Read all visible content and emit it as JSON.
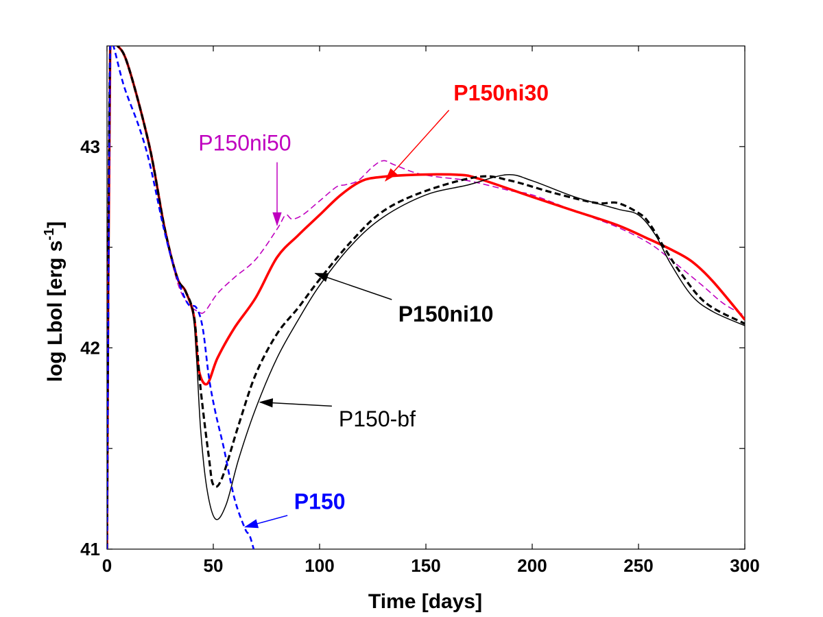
{
  "chart_data": {
    "type": "line",
    "title": "",
    "xlabel": "Time [days]",
    "ylabel": "log Lbol [erg s",
    "ylabel_sup": "-1",
    "ylabel_suffix": "]",
    "xlim": [
      0,
      300
    ],
    "ylim": [
      41,
      43.5
    ],
    "xticks": [
      0,
      50,
      100,
      150,
      200,
      250,
      300
    ],
    "xtick_labels": [
      "0",
      "50",
      "100",
      "150",
      "200",
      "250",
      "300"
    ],
    "yticks": [
      41,
      41.5,
      42,
      42.5,
      43
    ],
    "ytick_labels": [
      "41",
      "",
      "42",
      "",
      "43"
    ],
    "grid": false,
    "series": [
      {
        "name": "P150ni50",
        "color": "#bf00bf",
        "style": "dashed-thin",
        "points": [
          [
            0,
            41
          ],
          [
            1.5,
            43.5
          ],
          [
            5,
            43.5
          ],
          [
            10,
            43.4
          ],
          [
            20,
            43.0
          ],
          [
            27,
            42.6
          ],
          [
            33,
            42.33
          ],
          [
            38,
            42.22
          ],
          [
            43,
            42.18
          ],
          [
            46,
            42.18
          ],
          [
            52,
            42.27
          ],
          [
            60,
            42.35
          ],
          [
            70,
            42.44
          ],
          [
            80,
            42.59
          ],
          [
            84,
            42.66
          ],
          [
            87,
            42.64
          ],
          [
            92,
            42.66
          ],
          [
            100,
            42.73
          ],
          [
            108,
            42.8
          ],
          [
            112,
            42.81
          ],
          [
            118,
            42.83
          ],
          [
            125,
            42.9
          ],
          [
            130,
            42.93
          ],
          [
            135,
            42.91
          ],
          [
            145,
            42.87
          ],
          [
            155,
            42.85
          ],
          [
            170,
            42.83
          ],
          [
            190,
            42.78
          ],
          [
            200,
            42.76
          ],
          [
            220,
            42.68
          ],
          [
            240,
            42.6
          ],
          [
            255,
            42.52
          ],
          [
            265,
            42.44
          ],
          [
            280,
            42.31
          ],
          [
            290,
            42.22
          ],
          [
            300,
            42.16
          ]
        ]
      },
      {
        "name": "P150ni30",
        "color": "#ff0000",
        "style": "solid-thick",
        "points": [
          [
            0,
            41
          ],
          [
            1.5,
            43.5
          ],
          [
            5,
            43.5
          ],
          [
            10,
            43.4
          ],
          [
            20,
            43.0
          ],
          [
            27,
            42.6
          ],
          [
            33,
            42.35
          ],
          [
            37,
            42.28
          ],
          [
            41,
            42.15
          ],
          [
            43,
            41.9
          ],
          [
            47,
            41.82
          ],
          [
            52,
            41.95
          ],
          [
            60,
            42.1
          ],
          [
            70,
            42.25
          ],
          [
            80,
            42.45
          ],
          [
            90,
            42.56
          ],
          [
            100,
            42.66
          ],
          [
            110,
            42.76
          ],
          [
            120,
            42.83
          ],
          [
            130,
            42.85
          ],
          [
            145,
            42.86
          ],
          [
            165,
            42.86
          ],
          [
            175,
            42.84
          ],
          [
            200,
            42.75
          ],
          [
            220,
            42.68
          ],
          [
            240,
            42.61
          ],
          [
            255,
            42.54
          ],
          [
            265,
            42.49
          ],
          [
            275,
            42.43
          ],
          [
            285,
            42.33
          ],
          [
            300,
            42.14
          ]
        ]
      },
      {
        "name": "P150ni10",
        "color": "#000000",
        "style": "dashed-thick",
        "points": [
          [
            0,
            41
          ],
          [
            1.5,
            43.5
          ],
          [
            5,
            43.5
          ],
          [
            10,
            43.4
          ],
          [
            20,
            43.0
          ],
          [
            27,
            42.6
          ],
          [
            33,
            42.35
          ],
          [
            37,
            42.28
          ],
          [
            41,
            42.15
          ],
          [
            44,
            41.8
          ],
          [
            48,
            41.45
          ],
          [
            50,
            41.32
          ],
          [
            54,
            41.35
          ],
          [
            62,
            41.62
          ],
          [
            70,
            41.87
          ],
          [
            80,
            42.07
          ],
          [
            90,
            42.2
          ],
          [
            100,
            42.34
          ],
          [
            115,
            42.53
          ],
          [
            130,
            42.68
          ],
          [
            150,
            42.78
          ],
          [
            175,
            42.85
          ],
          [
            190,
            42.83
          ],
          [
            210,
            42.77
          ],
          [
            230,
            42.72
          ],
          [
            240,
            42.72
          ],
          [
            250,
            42.67
          ],
          [
            255,
            42.62
          ],
          [
            262,
            42.5
          ],
          [
            270,
            42.37
          ],
          [
            282,
            42.22
          ],
          [
            300,
            42.12
          ]
        ]
      },
      {
        "name": "P150-bf",
        "color": "#000000",
        "style": "solid-thin",
        "points": [
          [
            0,
            41
          ],
          [
            1.5,
            43.5
          ],
          [
            5,
            43.5
          ],
          [
            10,
            43.4
          ],
          [
            20,
            43.0
          ],
          [
            27,
            42.6
          ],
          [
            33,
            42.35
          ],
          [
            37,
            42.28
          ],
          [
            41,
            42.12
          ],
          [
            44,
            41.6
          ],
          [
            47,
            41.3
          ],
          [
            51,
            41.15
          ],
          [
            56,
            41.22
          ],
          [
            62,
            41.45
          ],
          [
            70,
            41.7
          ],
          [
            80,
            41.95
          ],
          [
            90,
            42.14
          ],
          [
            100,
            42.31
          ],
          [
            115,
            42.51
          ],
          [
            130,
            42.65
          ],
          [
            150,
            42.76
          ],
          [
            170,
            42.81
          ],
          [
            188,
            42.86
          ],
          [
            200,
            42.83
          ],
          [
            220,
            42.75
          ],
          [
            240,
            42.69
          ],
          [
            250,
            42.66
          ],
          [
            258,
            42.56
          ],
          [
            265,
            42.42
          ],
          [
            275,
            42.26
          ],
          [
            285,
            42.18
          ],
          [
            300,
            42.11
          ]
        ]
      },
      {
        "name": "P150",
        "color": "#0000ff",
        "style": "dashed-medium",
        "points": [
          [
            0,
            41
          ],
          [
            1.5,
            43.5
          ],
          [
            3,
            43.5
          ],
          [
            8,
            43.3
          ],
          [
            15,
            43.1
          ],
          [
            20,
            42.92
          ],
          [
            27,
            42.58
          ],
          [
            33,
            42.35
          ],
          [
            38,
            42.22
          ],
          [
            42,
            42.2
          ],
          [
            45,
            42.1
          ],
          [
            48,
            41.85
          ],
          [
            51,
            41.68
          ],
          [
            55,
            41.5
          ],
          [
            60,
            41.25
          ],
          [
            65,
            41.1
          ],
          [
            67,
            41.07
          ],
          [
            69,
            41.0
          ]
        ]
      }
    ],
    "annotations": [
      {
        "text": "P150ni30",
        "color": "#ff0000",
        "bold": true,
        "label_at": [
          163,
          43.23
        ],
        "arrow_to": [
          131,
          42.83
        ]
      },
      {
        "text": "P150ni50",
        "color": "#bf00bf",
        "bold": false,
        "label_at": [
          43,
          42.98
        ],
        "arrow_to": [
          80,
          42.61
        ]
      },
      {
        "text": "P150ni10",
        "color": "#000000",
        "bold": true,
        "label_at": [
          137,
          42.13
        ],
        "arrow_to": [
          98,
          42.37
        ]
      },
      {
        "text": "P150-bf",
        "color": "#000000",
        "bold": false,
        "label_at": [
          109,
          41.61
        ],
        "arrow_to": [
          72,
          41.73
        ]
      },
      {
        "text": "P150",
        "color": "#0000ff",
        "bold": true,
        "label_at": [
          88,
          41.2
        ],
        "arrow_to": [
          65,
          41.11
        ]
      }
    ]
  }
}
